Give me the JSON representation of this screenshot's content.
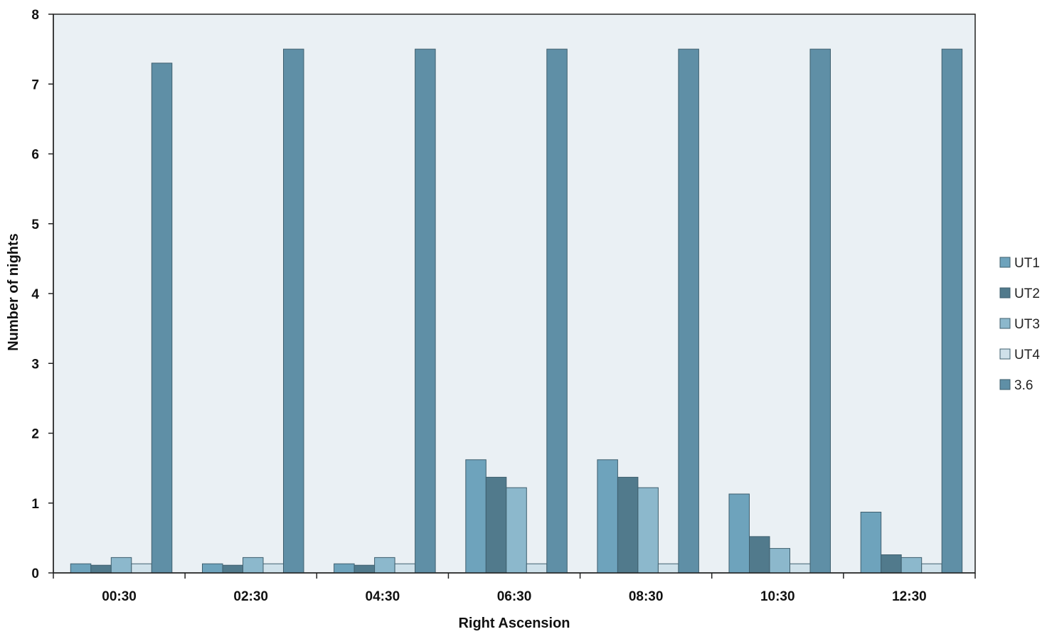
{
  "chart_data": {
    "type": "bar",
    "xlabel": "Right Ascension",
    "ylabel": "Number of nights",
    "ylim": [
      0,
      8
    ],
    "yticks": [
      "0",
      "1",
      "2",
      "3",
      "4",
      "5",
      "6",
      "7",
      "8"
    ],
    "grid": false,
    "legend_position": "right",
    "categories": [
      "00:30",
      "02:30",
      "04:30",
      "06:30",
      "08:30",
      "10:30",
      "12:30"
    ],
    "series": [
      {
        "name": "UT1",
        "color": "#6ea3bc",
        "values": [
          0.13,
          0.13,
          0.13,
          1.62,
          1.62,
          1.13,
          0.87
        ]
      },
      {
        "name": "UT2",
        "color": "#517a8c",
        "values": [
          0.11,
          0.11,
          0.11,
          1.37,
          1.37,
          0.52,
          0.26
        ]
      },
      {
        "name": "UT3",
        "color": "#8cb8cc",
        "values": [
          0.22,
          0.22,
          0.22,
          1.22,
          1.22,
          0.35,
          0.22
        ]
      },
      {
        "name": "UT4",
        "color": "#cfe1ea",
        "values": [
          0.13,
          0.13,
          0.13,
          0.13,
          0.13,
          0.13,
          0.13
        ]
      },
      {
        "name": "3.6",
        "color": "#5f8fa6",
        "values": [
          7.3,
          7.5,
          7.5,
          7.5,
          7.5,
          7.5,
          7.5
        ]
      }
    ],
    "colors": {
      "plot_background": "#eaf0f4",
      "bar_outline": "#3f5f6e",
      "axis": "#222222"
    }
  }
}
